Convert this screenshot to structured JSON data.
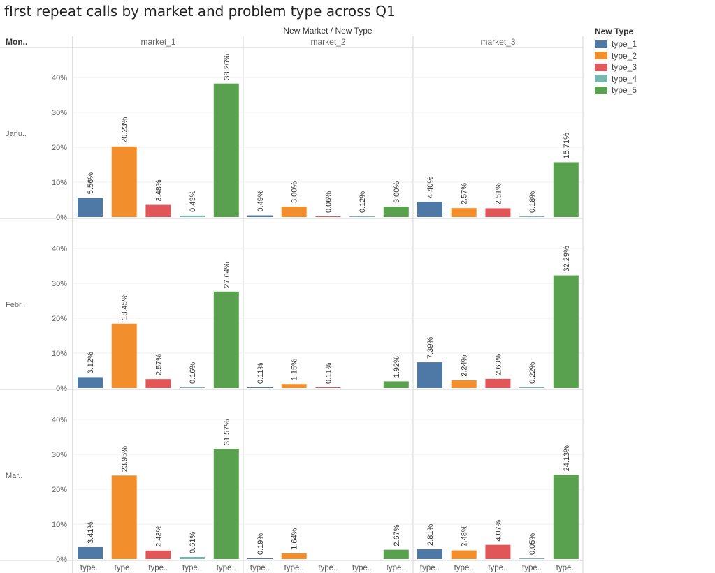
{
  "title": "fIrst repeat calls by market and problem type  across Q1",
  "header": {
    "column_field": "New Market  /  New Type",
    "row_field": "Mon.."
  },
  "legend": {
    "title": "New Type",
    "items": [
      {
        "label": "type_1",
        "color": "#4e79a7"
      },
      {
        "label": "type_2",
        "color": "#f28e2b"
      },
      {
        "label": "type_3",
        "color": "#e15759"
      },
      {
        "label": "type_4",
        "color": "#76b7b2"
      },
      {
        "label": "type_5",
        "color": "#59a14f"
      }
    ]
  },
  "chart_data": {
    "type": "bar",
    "markets": [
      "market_1",
      "market_2",
      "market_3"
    ],
    "months": [
      "Janu..",
      "Febr..",
      "Mar.."
    ],
    "categories": [
      "type_1",
      "type_2",
      "type_3",
      "type_4",
      "type_5"
    ],
    "category_tick_labels": [
      "type..",
      "type..",
      "type..",
      "type..",
      "type.."
    ],
    "colors": [
      "#4e79a7",
      "#f28e2b",
      "#e15759",
      "#76b7b2",
      "#59a14f"
    ],
    "y_ticks": [
      "0%",
      "10%",
      "20%",
      "30%",
      "40%"
    ],
    "ylim": [
      0,
      45
    ],
    "grid": true,
    "legend_position": "right",
    "values": [
      [
        [
          5.56,
          20.23,
          3.48,
          0.43,
          38.26
        ],
        [
          0.49,
          3.0,
          0.06,
          0.12,
          3.0
        ],
        [
          4.4,
          2.57,
          2.51,
          0.18,
          15.71
        ]
      ],
      [
        [
          3.12,
          18.45,
          2.57,
          0.16,
          27.64
        ],
        [
          0.11,
          1.15,
          0.11,
          null,
          1.92
        ],
        [
          7.39,
          2.24,
          2.63,
          0.22,
          32.29
        ]
      ],
      [
        [
          3.41,
          23.95,
          2.43,
          0.61,
          31.57
        ],
        [
          0.19,
          1.64,
          null,
          null,
          2.67
        ],
        [
          2.81,
          2.48,
          4.07,
          0.05,
          24.13
        ]
      ]
    ],
    "labels": [
      [
        [
          "5.56%",
          "20.23%",
          "3.48%",
          "0.43%",
          "38.26%"
        ],
        [
          "0.49%",
          "3.00%",
          "0.06%",
          "0.12%",
          "3.00%"
        ],
        [
          "4.40%",
          "2.57%",
          "2.51%",
          "0.18%",
          "15.71%"
        ]
      ],
      [
        [
          "3.12%",
          "18.45%",
          "2.57%",
          "0.16%",
          "27.64%"
        ],
        [
          "0.11%",
          "1.15%",
          "0.11%",
          null,
          "1.92%"
        ],
        [
          "7.39%",
          "2.24%",
          "2.63%",
          "0.22%",
          "32.29%"
        ]
      ],
      [
        [
          "3.41%",
          "23.95%",
          "2.43%",
          "0.61%",
          "31.57%"
        ],
        [
          "0.19%",
          "1.64%",
          null,
          null,
          "2.67%"
        ],
        [
          "2.81%",
          "2.48%",
          "4.07%",
          "0.05%",
          "24.13%"
        ]
      ]
    ]
  }
}
